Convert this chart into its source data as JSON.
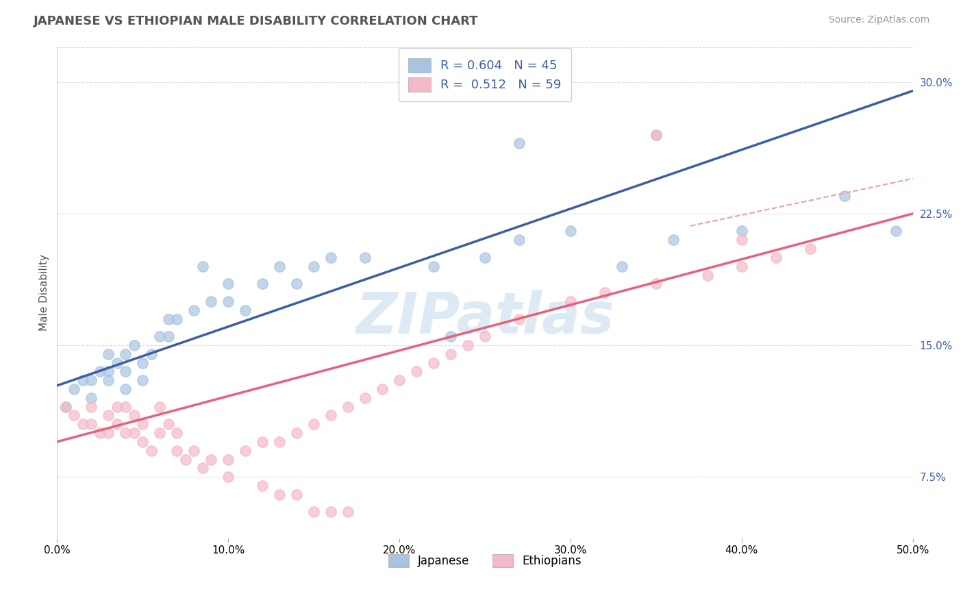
{
  "title": "JAPANESE VS ETHIOPIAN MALE DISABILITY CORRELATION CHART",
  "source": "Source: ZipAtlas.com",
  "ylabel": "Male Disability",
  "xlim": [
    0.0,
    0.5
  ],
  "ylim": [
    0.04,
    0.32
  ],
  "xticks": [
    0.0,
    0.1,
    0.2,
    0.3,
    0.4,
    0.5
  ],
  "yticks_right": [
    0.075,
    0.15,
    0.225,
    0.3
  ],
  "xtick_labels": [
    "0.0%",
    "10.0%",
    "20.0%",
    "30.0%",
    "40.0%",
    "50.0%"
  ],
  "ytick_labels_right": [
    "7.5%",
    "15.0%",
    "22.5%",
    "30.0%"
  ],
  "japanese_color": "#A8C4E0",
  "ethiopian_color": "#F5B8C8",
  "japanese_line_color": "#3B5EA6",
  "ethiopian_line_color": "#E8607A",
  "dashed_line_color": "#E8A0A8",
  "watermark": "ZIPatlas",
  "watermark_color": "#DDEAF5",
  "background_color": "#FFFFFF",
  "grid_color": "#DDDDDD",
  "japanese_x": [
    0.005,
    0.01,
    0.015,
    0.02,
    0.02,
    0.025,
    0.03,
    0.03,
    0.03,
    0.035,
    0.04,
    0.04,
    0.04,
    0.045,
    0.05,
    0.05,
    0.055,
    0.06,
    0.065,
    0.065,
    0.07,
    0.08,
    0.085,
    0.09,
    0.1,
    0.1,
    0.11,
    0.12,
    0.13,
    0.14,
    0.15,
    0.16,
    0.18,
    0.22,
    0.25,
    0.27,
    0.3,
    0.33,
    0.36,
    0.4,
    0.27,
    0.35,
    0.46,
    0.49,
    0.23
  ],
  "japanese_y": [
    0.115,
    0.125,
    0.13,
    0.12,
    0.13,
    0.135,
    0.13,
    0.135,
    0.145,
    0.14,
    0.125,
    0.135,
    0.145,
    0.15,
    0.13,
    0.14,
    0.145,
    0.155,
    0.155,
    0.165,
    0.165,
    0.17,
    0.195,
    0.175,
    0.175,
    0.185,
    0.17,
    0.185,
    0.195,
    0.185,
    0.195,
    0.2,
    0.2,
    0.195,
    0.2,
    0.21,
    0.215,
    0.195,
    0.21,
    0.215,
    0.265,
    0.27,
    0.235,
    0.215,
    0.155
  ],
  "ethiopian_x": [
    0.005,
    0.01,
    0.015,
    0.02,
    0.02,
    0.025,
    0.03,
    0.03,
    0.035,
    0.035,
    0.04,
    0.04,
    0.045,
    0.045,
    0.05,
    0.05,
    0.055,
    0.06,
    0.06,
    0.065,
    0.07,
    0.07,
    0.075,
    0.08,
    0.085,
    0.09,
    0.1,
    0.11,
    0.12,
    0.13,
    0.14,
    0.15,
    0.16,
    0.17,
    0.18,
    0.19,
    0.2,
    0.21,
    0.22,
    0.23,
    0.24,
    0.25,
    0.27,
    0.3,
    0.32,
    0.35,
    0.38,
    0.4,
    0.42,
    0.44,
    0.1,
    0.12,
    0.13,
    0.14,
    0.15,
    0.16,
    0.17,
    0.35,
    0.4
  ],
  "ethiopian_y": [
    0.115,
    0.11,
    0.105,
    0.105,
    0.115,
    0.1,
    0.1,
    0.11,
    0.105,
    0.115,
    0.1,
    0.115,
    0.1,
    0.11,
    0.095,
    0.105,
    0.09,
    0.1,
    0.115,
    0.105,
    0.09,
    0.1,
    0.085,
    0.09,
    0.08,
    0.085,
    0.085,
    0.09,
    0.095,
    0.095,
    0.1,
    0.105,
    0.11,
    0.115,
    0.12,
    0.125,
    0.13,
    0.135,
    0.14,
    0.145,
    0.15,
    0.155,
    0.165,
    0.175,
    0.18,
    0.185,
    0.19,
    0.195,
    0.2,
    0.205,
    0.075,
    0.07,
    0.065,
    0.065,
    0.055,
    0.055,
    0.055,
    0.27,
    0.21
  ],
  "jap_line_x0": 0.0,
  "jap_line_y0": 0.127,
  "jap_line_x1": 0.5,
  "jap_line_y1": 0.295,
  "eth_line_x0": 0.0,
  "eth_line_y0": 0.095,
  "eth_line_x1": 0.5,
  "eth_line_y1": 0.225,
  "dash_line_x0": 0.37,
  "dash_line_y0": 0.218,
  "dash_line_x1": 0.5,
  "dash_line_y1": 0.245,
  "figsize": [
    14.06,
    8.92
  ],
  "dpi": 100
}
